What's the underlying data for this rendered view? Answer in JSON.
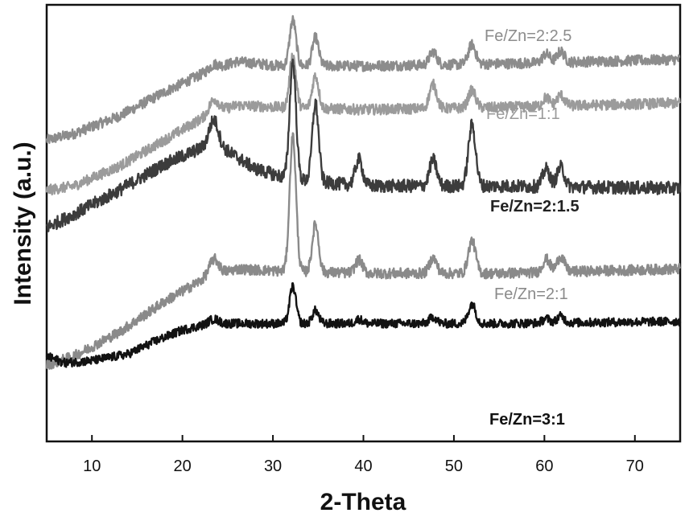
{
  "chart_data": {
    "type": "line",
    "title": "",
    "xlabel": "2-Theta",
    "ylabel": "Intensity (a.u.)",
    "xlim": [
      5,
      75
    ],
    "ylim": [
      0,
      1
    ],
    "xticks": [
      10,
      20,
      30,
      40,
      50,
      60,
      70
    ],
    "grid": false,
    "legend": "inline labels to the right of each curve",
    "peaks": [
      {
        "x": 23.5,
        "w": 0.5
      },
      {
        "x": 32.2,
        "w": 0.35
      },
      {
        "x": 34.7,
        "w": 0.35
      },
      {
        "x": 39.5,
        "w": 0.4
      },
      {
        "x": 47.7,
        "w": 0.4
      },
      {
        "x": 52.0,
        "w": 0.4
      },
      {
        "x": 60.2,
        "w": 0.4
      },
      {
        "x": 61.8,
        "w": 0.4
      }
    ],
    "series": [
      {
        "name": "Fe/Zn=2:2.5",
        "color": "#8c8c8c",
        "noise": 0.012,
        "profile": [
          [
            5,
            0.69
          ],
          [
            8,
            0.705
          ],
          [
            13,
            0.745
          ],
          [
            18,
            0.8
          ],
          [
            23,
            0.85
          ],
          [
            26,
            0.87
          ],
          [
            31,
            0.86
          ],
          [
            40,
            0.86
          ],
          [
            55,
            0.865
          ],
          [
            75,
            0.875
          ]
        ],
        "peak_heights": [
          0.01,
          0.105,
          0.065,
          0.0,
          0.03,
          0.045,
          0.02,
          0.025
        ]
      },
      {
        "name": "Fe/Zn=1:1",
        "color": "#9b9b9b",
        "noise": 0.012,
        "profile": [
          [
            5,
            0.575
          ],
          [
            8,
            0.585
          ],
          [
            13,
            0.63
          ],
          [
            18,
            0.69
          ],
          [
            23,
            0.75
          ],
          [
            26,
            0.77
          ],
          [
            31,
            0.765
          ],
          [
            40,
            0.76
          ],
          [
            55,
            0.765
          ],
          [
            75,
            0.775
          ]
        ],
        "peak_heights": [
          0.03,
          0.12,
          0.075,
          0.0,
          0.055,
          0.04,
          0.02,
          0.025
        ]
      },
      {
        "name": "Fe/Zn=2:1.5",
        "color": "#3c3c3c",
        "noise": 0.015,
        "profile": [
          [
            5,
            0.49
          ],
          [
            8,
            0.52
          ],
          [
            13,
            0.575
          ],
          [
            18,
            0.635
          ],
          [
            23,
            0.68
          ],
          [
            25,
            0.665
          ],
          [
            28,
            0.625
          ],
          [
            32,
            0.6
          ],
          [
            40,
            0.585
          ],
          [
            55,
            0.585
          ],
          [
            75,
            0.58
          ]
        ],
        "peak_heights": [
          0.06,
          0.27,
          0.18,
          0.06,
          0.06,
          0.14,
          0.04,
          0.045
        ]
      },
      {
        "name": "Fe/Zn=2:1",
        "color": "#8a8a8a",
        "noise": 0.012,
        "profile": [
          [
            5,
            0.175
          ],
          [
            8,
            0.195
          ],
          [
            13,
            0.25
          ],
          [
            18,
            0.32
          ],
          [
            23,
            0.38
          ],
          [
            26,
            0.395
          ],
          [
            31,
            0.39
          ],
          [
            40,
            0.385
          ],
          [
            55,
            0.385
          ],
          [
            75,
            0.395
          ]
        ],
        "peak_heights": [
          0.035,
          0.31,
          0.11,
          0.03,
          0.035,
          0.075,
          0.03,
          0.035
        ]
      },
      {
        "name": "Fe/Zn=3:1",
        "color": "#121212",
        "noise": 0.01,
        "profile": [
          [
            5,
            0.195
          ],
          [
            7,
            0.18
          ],
          [
            10,
            0.185
          ],
          [
            14,
            0.2
          ],
          [
            17,
            0.23
          ],
          [
            20,
            0.255
          ],
          [
            23,
            0.27
          ],
          [
            30,
            0.27
          ],
          [
            40,
            0.27
          ],
          [
            55,
            0.27
          ],
          [
            75,
            0.275
          ]
        ],
        "peak_heights": [
          0.01,
          0.085,
          0.03,
          0.01,
          0.015,
          0.045,
          0.01,
          0.015
        ]
      }
    ]
  }
}
